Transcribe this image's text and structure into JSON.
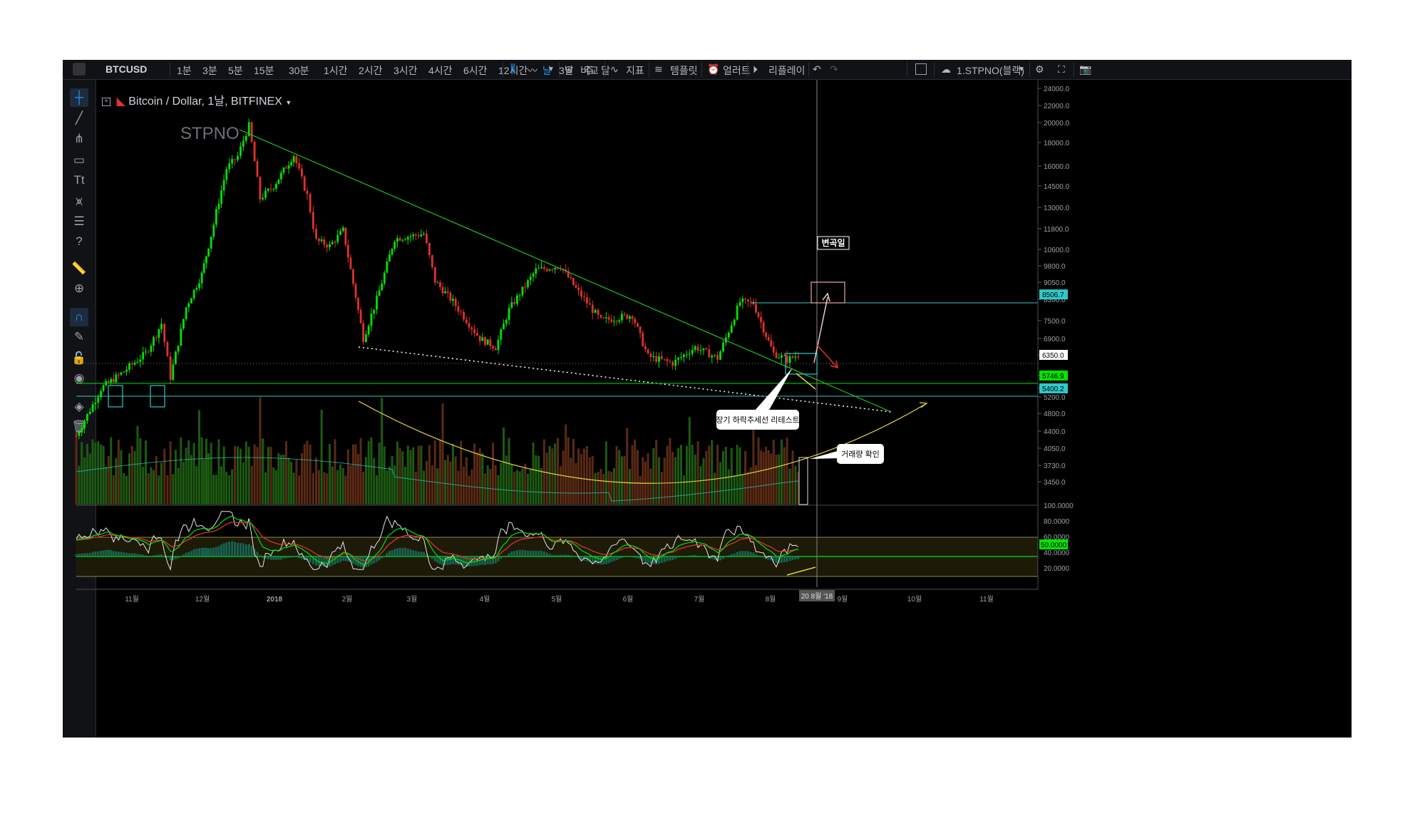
{
  "toolbar": {
    "symbol": "BTCUSD",
    "intervals": [
      "1분",
      "3분",
      "5분",
      "15분",
      "30분",
      "1시간",
      "2시간",
      "3시간",
      "4시간",
      "6시간",
      "12시간",
      "날",
      "3날",
      "주",
      "달"
    ],
    "active_interval": "날",
    "compare_label": "비교",
    "indicators_label": "지표",
    "templates_label": "템플릿",
    "alert_label": "얼러트",
    "replay_label": "리플레이",
    "layout_label": "1.STPNO(블랙)"
  },
  "left_tools": [
    "crosshair-icon",
    "trend-line-icon",
    "pitchfork-icon",
    "rectangle-icon",
    "text-tool-icon",
    "pattern-icon",
    "fib-icon",
    "help-icon",
    "ruler-icon",
    "zoom-icon",
    "magnet-icon",
    "pencil-lock-icon",
    "lock-icon",
    "eye-icon",
    "layers-icon",
    "trash-icon"
  ],
  "legend": {
    "title": "Bitcoin / Dollar, 1날, BITFINEX"
  },
  "watermark": "STPNO",
  "annotations": {
    "inflection": "변곡일",
    "retest": "장기 하락추세선 리테스트",
    "volume": "거래량 확인"
  },
  "colors": {
    "up": "#26a69a",
    "up_bright": "#00e400",
    "down": "#e0322b",
    "trend": "#1fc31f",
    "curve": "#e4d43c",
    "cyan": "#2ec9c9"
  },
  "chart_data": {
    "type": "candlestick",
    "title": "Bitcoin / Dollar, 1날, BITFINEX",
    "price_axis_labels": [
      "24000.0",
      "22000.0",
      "20000.0",
      "18000.0",
      "16000.0",
      "14500.0",
      "13000.0",
      "11800.0",
      "10600.0",
      "9800.0",
      "9050.0",
      "8300.0",
      "7500.0",
      "6900.0",
      "6350.0",
      "5746.9",
      "5400.2",
      "5200.0",
      "4800.0",
      "4400.0",
      "4050.0",
      "3730.0",
      "3450.0"
    ],
    "price_badges": [
      {
        "label": "8506.7",
        "color": "#2ec9c9"
      },
      {
        "label": "6350.0",
        "color": "#ffffff"
      },
      {
        "label": "5746.9",
        "color": "#00e400"
      },
      {
        "label": "5400.2",
        "color": "#2ec9c9"
      }
    ],
    "rsi_axis_labels": [
      "100.0000",
      "80.0000",
      "60.0000",
      "50.0000",
      "40.0000",
      "20.0000"
    ],
    "rsi_badge": "50.0000",
    "x_labels": [
      "11월",
      "12월",
      "2018",
      "2월",
      "3월",
      "4월",
      "5월",
      "6월",
      "7월",
      "8월",
      "9월",
      "10월",
      "11월"
    ],
    "cursor_date": "20 8월 '18",
    "price_path": [
      {
        "date": "2017-10-01",
        "close": 4300
      },
      {
        "date": "2017-10-12",
        "close": 5400
      },
      {
        "date": "2017-10-21",
        "close": 5800
      },
      {
        "date": "2017-11-01",
        "close": 6400
      },
      {
        "date": "2017-11-08",
        "close": 7400
      },
      {
        "date": "2017-11-12",
        "close": 5700
      },
      {
        "date": "2017-11-19",
        "close": 8000
      },
      {
        "date": "2017-11-26",
        "close": 9400
      },
      {
        "date": "2017-11-29",
        "close": 10800
      },
      {
        "date": "2017-12-07",
        "close": 15800
      },
      {
        "date": "2017-12-12",
        "close": 16800
      },
      {
        "date": "2017-12-17",
        "close": 19700
      },
      {
        "date": "2017-12-22",
        "close": 13600
      },
      {
        "date": "2017-12-28",
        "close": 14500
      },
      {
        "date": "2018-01-06",
        "close": 16900
      },
      {
        "date": "2018-01-12",
        "close": 13800
      },
      {
        "date": "2018-01-16",
        "close": 11100
      },
      {
        "date": "2018-01-22",
        "close": 10800
      },
      {
        "date": "2018-01-28",
        "close": 11700
      },
      {
        "date": "2018-02-06",
        "close": 6900
      },
      {
        "date": "2018-02-12",
        "close": 8300
      },
      {
        "date": "2018-02-20",
        "close": 11200
      },
      {
        "date": "2018-03-05",
        "close": 11500
      },
      {
        "date": "2018-03-10",
        "close": 9100
      },
      {
        "date": "2018-03-18",
        "close": 8200
      },
      {
        "date": "2018-03-30",
        "close": 6900
      },
      {
        "date": "2018-04-06",
        "close": 6600
      },
      {
        "date": "2018-04-12",
        "close": 7900
      },
      {
        "date": "2018-04-24",
        "close": 9600
      },
      {
        "date": "2018-05-05",
        "close": 9800
      },
      {
        "date": "2018-05-13",
        "close": 8600
      },
      {
        "date": "2018-05-23",
        "close": 7500
      },
      {
        "date": "2018-06-06",
        "close": 7700
      },
      {
        "date": "2018-06-13",
        "close": 6300
      },
      {
        "date": "2018-06-24",
        "close": 6100
      },
      {
        "date": "2018-07-04",
        "close": 6600
      },
      {
        "date": "2018-07-14",
        "close": 6250
      },
      {
        "date": "2018-07-24",
        "close": 8200
      },
      {
        "date": "2018-07-30",
        "close": 8150
      },
      {
        "date": "2018-08-08",
        "close": 6400
      },
      {
        "date": "2018-08-14",
        "close": 6200
      },
      {
        "date": "2018-08-19",
        "close": 6350
      }
    ],
    "grid": false
  }
}
